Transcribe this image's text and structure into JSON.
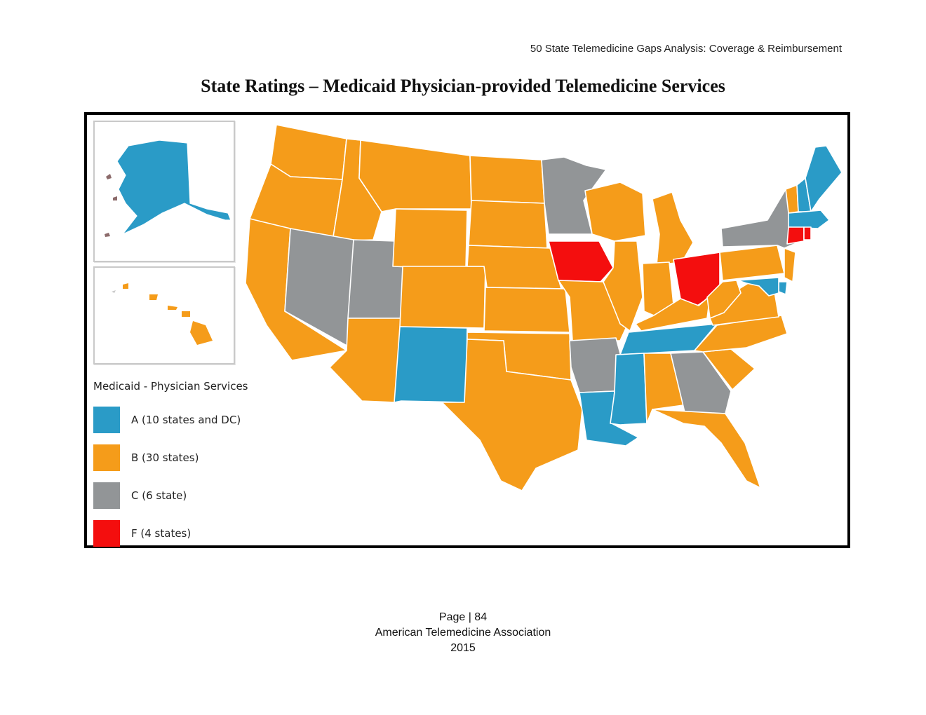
{
  "header": {
    "running_title": "50 State Telemedicine Gaps Analysis:  Coverage & Reimbursement"
  },
  "title": "State Ratings – Medicaid Physician-provided Telemedicine Services",
  "colors": {
    "A": "#2a9bc7",
    "B": "#f59c1a",
    "C": "#929597",
    "F": "#f40e0e"
  },
  "legend": {
    "title": "Medicaid - Physician Services",
    "items": [
      {
        "grade": "A",
        "label": "A (10 states and DC)"
      },
      {
        "grade": "B",
        "label": "B (30 states)"
      },
      {
        "grade": "C",
        "label": "C (6 state)"
      },
      {
        "grade": "F",
        "label": "F (4 states)"
      }
    ]
  },
  "footer": {
    "page": "Page | 84",
    "org": "American Telemedicine Association",
    "year": "2015"
  }
}
